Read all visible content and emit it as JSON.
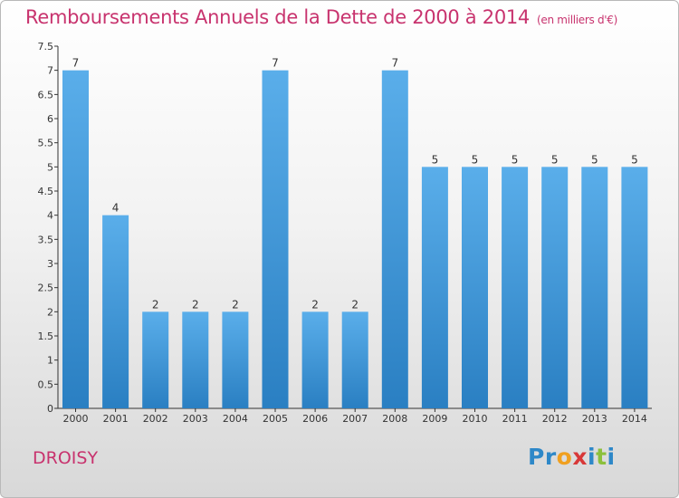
{
  "title": "Remboursements Annuels de la Dette de 2000 à 2014",
  "subtitle": "(en milliers d'€)",
  "place": "DROISY",
  "logo": {
    "letters": [
      "P",
      "r",
      "o",
      "x",
      "i",
      "t",
      "i"
    ],
    "colors": [
      "#2e88c8",
      "#2e88c8",
      "#f0a020",
      "#d83838",
      "#2e88c8",
      "#8cc03c",
      "#2e88c8"
    ]
  },
  "colors": {
    "bar_top": "#5aaeea",
    "bar_bottom": "#2a7fc2",
    "title": "#c8336e",
    "axis": "#333333",
    "grid": "#cccccc"
  },
  "chart_data": {
    "type": "bar",
    "categories": [
      "2000",
      "2001",
      "2002",
      "2003",
      "2004",
      "2005",
      "2006",
      "2007",
      "2008",
      "2009",
      "2010",
      "2011",
      "2012",
      "2013",
      "2014"
    ],
    "values": [
      7,
      4,
      2,
      2,
      2,
      7,
      2,
      2,
      7,
      5,
      5,
      5,
      5,
      5,
      5
    ],
    "data_labels": [
      "7",
      "4",
      "2",
      "2",
      "2",
      "7",
      "2",
      "2",
      "7",
      "5",
      "5",
      "5",
      "5",
      "5",
      "5"
    ],
    "yticks": [
      "0",
      "0.5",
      "1",
      "1.5",
      "2",
      "2.5",
      "3",
      "3.5",
      "4",
      "4.5",
      "5",
      "5.5",
      "6",
      "6.5",
      "7",
      "7.5"
    ],
    "ylim": [
      0,
      7.5
    ],
    "grid": false,
    "legend": "none"
  }
}
